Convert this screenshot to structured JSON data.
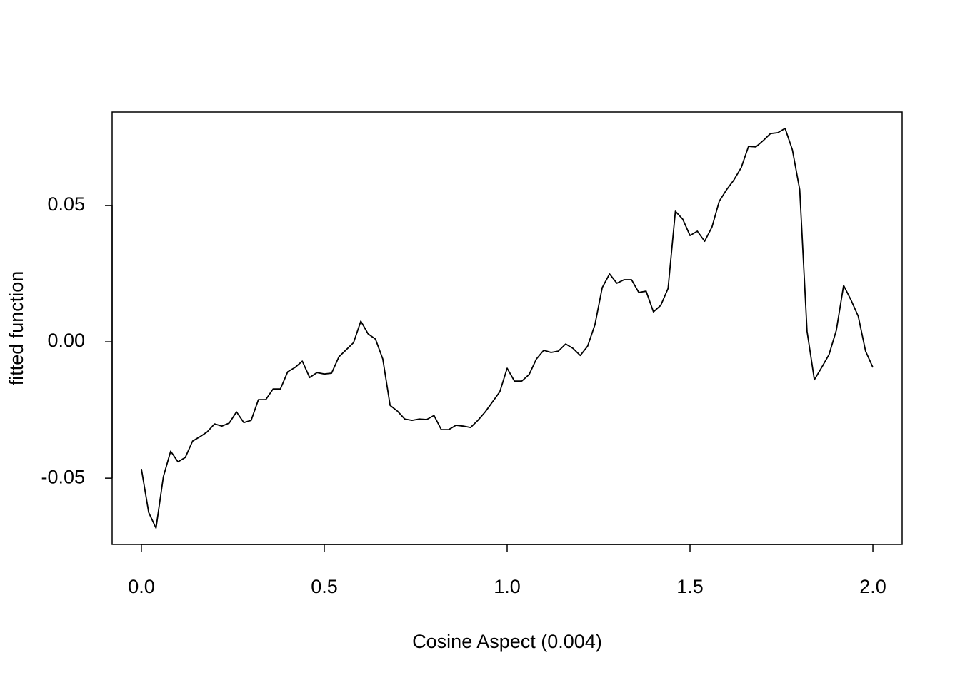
{
  "chart_data": {
    "type": "line",
    "xlabel": "Cosine Aspect  (0.004)",
    "ylabel": "fitted function",
    "x": [
      0,
      0.02,
      0.04,
      0.06,
      0.08,
      0.1,
      0.12,
      0.14,
      0.16,
      0.18,
      0.2,
      0.22,
      0.24,
      0.26,
      0.28,
      0.3,
      0.32,
      0.34,
      0.36,
      0.38,
      0.4,
      0.42,
      0.44,
      0.46,
      0.48,
      0.5,
      0.52,
      0.54,
      0.56,
      0.58,
      0.6,
      0.62,
      0.64,
      0.66,
      0.68,
      0.7,
      0.72,
      0.74,
      0.76,
      0.78,
      0.8,
      0.82,
      0.84,
      0.86,
      0.88,
      0.9,
      0.92,
      0.94,
      0.96,
      0.98,
      1,
      1.02,
      1.04,
      1.06,
      1.08,
      1.1,
      1.12,
      1.14,
      1.16,
      1.18,
      1.2,
      1.22,
      1.24,
      1.26,
      1.28,
      1.3,
      1.32,
      1.34,
      1.36,
      1.38,
      1.4,
      1.42,
      1.44,
      1.46,
      1.48,
      1.5,
      1.52,
      1.54,
      1.56,
      1.58,
      1.6,
      1.62,
      1.64,
      1.66,
      1.68,
      1.7,
      1.72,
      1.74,
      1.76,
      1.78,
      1.8,
      1.82,
      1.84,
      1.86,
      1.88,
      1.9,
      1.92,
      1.94,
      1.96,
      1.98,
      2
    ],
    "values": [
      -0.0466,
      -0.0626,
      -0.0683,
      -0.0495,
      -0.0401,
      -0.044,
      -0.0424,
      -0.0364,
      -0.0348,
      -0.033,
      -0.0301,
      -0.0309,
      -0.0298,
      -0.0257,
      -0.0296,
      -0.0288,
      -0.0212,
      -0.0212,
      -0.0173,
      -0.0173,
      -0.011,
      -0.0094,
      -0.0071,
      -0.0131,
      -0.0113,
      -0.0118,
      -0.0115,
      -0.0055,
      -0.0029,
      -0.0003,
      0.0076,
      0.0029,
      0.001,
      -0.0063,
      -0.0233,
      -0.0254,
      -0.0283,
      -0.0288,
      -0.0283,
      -0.0285,
      -0.027,
      -0.0322,
      -0.0322,
      -0.0306,
      -0.0309,
      -0.0314,
      -0.0288,
      -0.0257,
      -0.022,
      -0.0183,
      -0.0097,
      -0.0144,
      -0.0144,
      -0.012,
      -0.0063,
      -0.0031,
      -0.0039,
      -0.0034,
      -0.0008,
      -0.0024,
      -0.005,
      -0.0016,
      0.0063,
      0.0199,
      0.0249,
      0.0215,
      0.0228,
      0.0228,
      0.0181,
      0.0186,
      0.011,
      0.0134,
      0.0196,
      0.0479,
      0.045,
      0.039,
      0.0406,
      0.0369,
      0.0421,
      0.0516,
      0.0558,
      0.0594,
      0.0639,
      0.0717,
      0.0715,
      0.0738,
      0.0764,
      0.0767,
      0.0783,
      0.0704,
      0.0558,
      0.0039,
      -0.0139,
      -0.0094,
      -0.0047,
      0.0042,
      0.0207,
      0.0154,
      0.0094,
      -0.0034,
      -0.0094
    ],
    "color": "#000000",
    "xlim": [
      -0.08,
      2.08
    ],
    "xticks": [
      {
        "value": 0,
        "label": "0.0"
      },
      {
        "value": 0.5,
        "label": "0.5"
      },
      {
        "value": 1,
        "label": "1.0"
      },
      {
        "value": 1.5,
        "label": "1.5"
      },
      {
        "value": 2,
        "label": "2.0"
      }
    ],
    "ylim": [
      -0.0743,
      0.0843
    ],
    "yticks": [
      -0.05,
      {
        "value": 0,
        "label": "0.00"
      },
      0.05
    ]
  }
}
